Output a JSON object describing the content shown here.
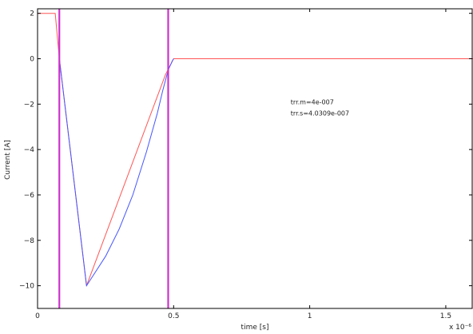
{
  "chart_data": {
    "type": "line",
    "xlabel": "time [s]",
    "ylabel": "Current [A]",
    "x_exponent_label": "x 10⁻⁶",
    "xlim": [
      0,
      1.6
    ],
    "ylim": [
      -11,
      2.2
    ],
    "x_ticks": [
      0,
      0.5,
      1,
      1.5
    ],
    "x_tick_labels": [
      "0",
      "0.5",
      "1",
      "1.5"
    ],
    "y_ticks": [
      2,
      0,
      -2,
      -4,
      -6,
      -8,
      -10
    ],
    "y_tick_labels": [
      "2",
      "0",
      "−2",
      "−4",
      "−6",
      "−8",
      "−10"
    ],
    "grid": false,
    "series": [
      {
        "color": "#ff5555",
        "x": [
          0,
          0.065,
          0.08,
          0.18,
          0.47,
          0.5,
          1.6
        ],
        "y": [
          2,
          2,
          0,
          -10,
          -0.7,
          0,
          0
        ]
      },
      {
        "color": "#4455ff",
        "x": [
          0.08,
          0.18,
          0.25,
          0.3,
          0.35,
          0.4,
          0.44,
          0.46,
          0.48,
          0.495,
          0.5
        ],
        "y": [
          0,
          -10,
          -8.7,
          -7.5,
          -6.0,
          -4.1,
          -2.4,
          -1.4,
          -0.5,
          -0.1,
          0
        ]
      }
    ],
    "vertical_markers": [
      {
        "x": 0.08,
        "color": "#cc33cc"
      },
      {
        "x": 0.48,
        "color": "#cc33cc"
      }
    ],
    "annotations": [
      {
        "text": "trr.m=4e-007",
        "x": 0.93,
        "y": -2.0
      },
      {
        "text": "trr.s=4.0309e-007",
        "x": 0.93,
        "y": -2.5
      }
    ]
  }
}
